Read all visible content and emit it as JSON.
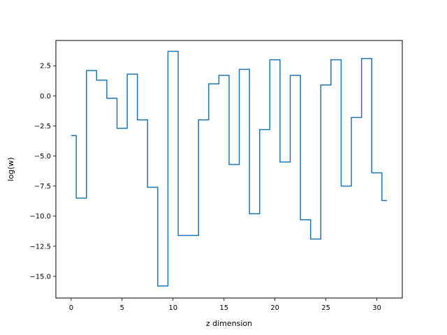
{
  "chart_data": {
    "type": "line",
    "drawstyle": "steps-mid",
    "title": "",
    "xlabel": "z dimension",
    "ylabel": "log(w)",
    "xlim": [
      -1.5,
      32.5
    ],
    "ylim": [
      -16.8,
      4.6
    ],
    "xticks": [
      0,
      5,
      10,
      15,
      20,
      25,
      30
    ],
    "xtick_labels": [
      "0",
      "5",
      "10",
      "15",
      "20",
      "25",
      "30"
    ],
    "yticks": [
      2.5,
      0.0,
      -2.5,
      -5.0,
      -7.5,
      -10.0,
      -12.5,
      -15.0
    ],
    "ytick_labels": [
      "2.5",
      "0.0",
      "−2.5",
      "−5.0",
      "−7.5",
      "−10.0",
      "−12.5",
      "−15.0"
    ],
    "grid": false,
    "series": [
      {
        "color": "#1f77b4",
        "x": [
          0,
          1,
          2,
          3,
          4,
          5,
          6,
          7,
          8,
          9,
          10,
          11,
          12,
          13,
          14,
          15,
          16,
          17,
          18,
          19,
          20,
          21,
          22,
          23,
          24,
          25,
          26,
          27,
          28,
          29,
          30,
          31
        ],
        "y": [
          -3.3,
          -8.5,
          2.1,
          1.3,
          -0.2,
          -2.7,
          1.8,
          -2.0,
          -7.6,
          -15.8,
          3.7,
          -11.6,
          -11.6,
          -2.0,
          1.0,
          1.7,
          -5.7,
          2.2,
          -9.8,
          -2.8,
          3.0,
          -5.5,
          1.7,
          -10.3,
          -11.9,
          0.9,
          3.0,
          -7.5,
          -1.8,
          3.1,
          -6.4,
          -8.7
        ]
      }
    ]
  }
}
